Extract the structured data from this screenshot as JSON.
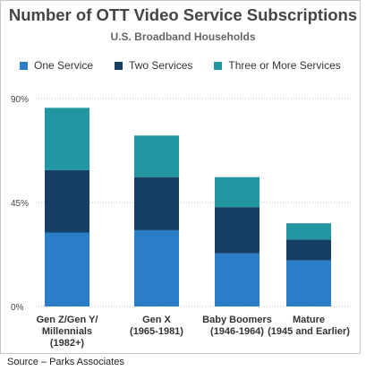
{
  "title": "Number of OTT Video Service Subscriptions",
  "subtitle": "U.S. Broadband Households",
  "source": "Source – Parks Associates",
  "colors": {
    "one": "#2a7ec7",
    "two": "#173e64",
    "three": "#2397a1",
    "grid": "#bfbfbf",
    "axis_text": "#444444",
    "cat_text": "#333333"
  },
  "chart_data": {
    "type": "bar",
    "stacked": true,
    "title": "Number of OTT Video Service Subscriptions",
    "subtitle": "U.S. Broadband Households",
    "ylim": [
      0,
      90
    ],
    "yticks": [
      0,
      45,
      90
    ],
    "ytick_labels": [
      "0%",
      "45%",
      "90%"
    ],
    "grid": true,
    "legend_position": "top",
    "categories": [
      [
        "Gen Z/Gen Y/",
        "Millennials",
        "(1982+)"
      ],
      [
        "Gen X",
        "(1965-1981)"
      ],
      [
        "Baby Boomers",
        "(1946-1964)"
      ],
      [
        "Mature",
        "(1945 and Earlier)"
      ]
    ],
    "series": [
      {
        "name": "One Service",
        "color": "#2a7ec7",
        "values": [
          32,
          33,
          23,
          20
        ]
      },
      {
        "name": "Two Services",
        "color": "#173e64",
        "values": [
          27,
          23,
          20,
          9
        ]
      },
      {
        "name": "Three or More Services",
        "color": "#2397a1",
        "values": [
          27,
          18,
          13,
          7
        ]
      }
    ]
  }
}
